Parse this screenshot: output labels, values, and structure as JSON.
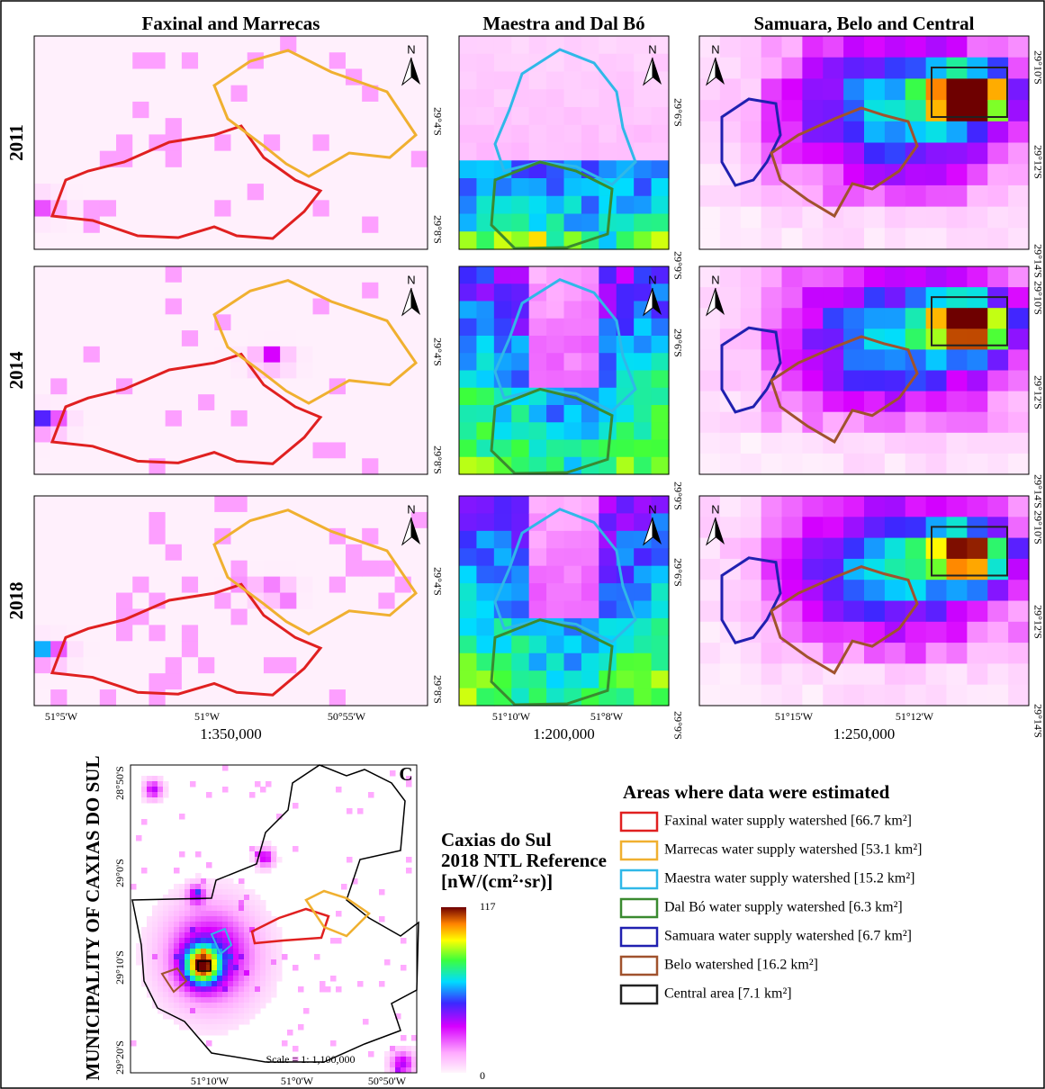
{
  "columns": [
    {
      "title": "Faxinal and Marrecas",
      "lat_labels": [
        "29°4'S",
        "29°8'S"
      ],
      "lon_labels": [
        "51°5'W",
        "51°W",
        "50°55'W"
      ],
      "scale": "1:350,000"
    },
    {
      "title": "Maestra and Dal Bó",
      "lat_labels": [
        "29°6'S",
        "29°9'S"
      ],
      "lon_labels": [
        "51°10'W",
        "51°8'W"
      ],
      "scale": "1:200,000"
    },
    {
      "title": "Samuara, Belo and Central",
      "lat_labels": [
        "29°10'S",
        "29°12'S",
        "29°14'S"
      ],
      "lon_labels": [
        "51°15'W",
        "51°12'W"
      ],
      "scale": "1:250,000"
    }
  ],
  "rows": [
    "2011",
    "2014",
    "2018"
  ],
  "north_label": "N",
  "inset": {
    "title": "MUNICIPALITY OF CAXIAS DO SUL",
    "panel_label": "C",
    "lat_labels": [
      "28°50'S",
      "29°0'S",
      "29°10'S",
      "29°20'S"
    ],
    "lon_labels": [
      "51°10'W",
      "51°0'W",
      "50°50'W"
    ],
    "scale": "Scale = 1: 1,100,000"
  },
  "colorbar": {
    "title_lines": [
      "Caxias do Sul",
      "2018 NTL Reference",
      "[nW/(cm²·sr)]"
    ],
    "max": 117,
    "min": 0
  },
  "legend": {
    "title": "Areas where data were estimated",
    "items": [
      {
        "label": "Faxinal water supply watershed [66.7 km²]",
        "color": "#e02020"
      },
      {
        "label": "Marrecas water supply watershed [53.1 km²]",
        "color": "#f0b030"
      },
      {
        "label": "Maestra water supply watershed [15.2 km²]",
        "color": "#30b8e8"
      },
      {
        "label": "Dal Bó water supply watershed [6.3 km²]",
        "color": "#3a8a30"
      },
      {
        "label": "Samuara water supply watershed [6.7 km²]",
        "color": "#2020b0"
      },
      {
        "label": "Belo watershed [16.2 km²]",
        "color": "#a0522d"
      },
      {
        "label": "Central area [7.1 km²]",
        "color": "#222222"
      }
    ]
  }
}
